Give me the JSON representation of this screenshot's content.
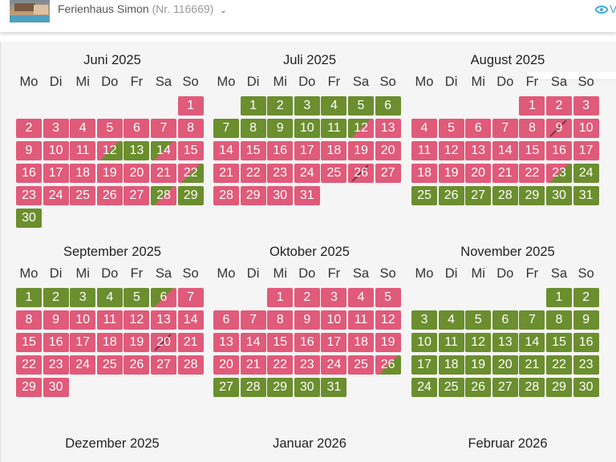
{
  "header": {
    "title": "Ferienhaus Simon",
    "number": "(Nr. 116669)",
    "view_link": "V"
  },
  "colors": {
    "booked": "#e05a79",
    "free": "#6b8e2e"
  },
  "weekdays": [
    "Mo",
    "Di",
    "Mi",
    "Do",
    "Fr",
    "Sa",
    "So"
  ],
  "months": [
    {
      "title": "Juni 2025",
      "startCol": 6,
      "days": 30,
      "free": [
        13,
        29,
        30
      ],
      "bookedToFree": [
        12,
        22
      ],
      "freeToBooked": [
        14,
        28
      ],
      "slash": []
    },
    {
      "title": "Juli 2025",
      "startCol": 1,
      "days": 31,
      "free": [
        1,
        2,
        3,
        4,
        5,
        6,
        7,
        8,
        9,
        10,
        11
      ],
      "bookedToFree": [],
      "freeToBooked": [
        12
      ],
      "slash": [
        26
      ]
    },
    {
      "title": "August 2025",
      "startCol": 4,
      "days": 31,
      "free": [
        24,
        25,
        26,
        27,
        28,
        29,
        30,
        31
      ],
      "bookedToFree": [
        23
      ],
      "freeToBooked": [],
      "slash": [
        9
      ]
    },
    {
      "title": "September 2025",
      "startCol": 0,
      "days": 30,
      "free": [
        1,
        2,
        3,
        4,
        5
      ],
      "bookedToFree": [],
      "freeToBooked": [
        6
      ],
      "slash": [
        20
      ]
    },
    {
      "title": "Oktober 2025",
      "startCol": 2,
      "days": 31,
      "free": [
        27,
        28,
        29,
        30,
        31
      ],
      "bookedToFree": [
        26
      ],
      "freeToBooked": [],
      "slash": []
    },
    {
      "title": "November 2025",
      "startCol": 5,
      "days": 30,
      "free": "all",
      "bookedToFree": [],
      "freeToBooked": [],
      "slash": []
    },
    {
      "title": "Dezember 2025",
      "startCol": 0,
      "days": 0,
      "free": [],
      "bookedToFree": [],
      "freeToBooked": [],
      "slash": []
    },
    {
      "title": "Januar 2026",
      "startCol": 0,
      "days": 0,
      "free": [],
      "bookedToFree": [],
      "freeToBooked": [],
      "slash": []
    },
    {
      "title": "Februar 2026",
      "startCol": 0,
      "days": 0,
      "free": [],
      "bookedToFree": [],
      "freeToBooked": [],
      "slash": []
    }
  ]
}
